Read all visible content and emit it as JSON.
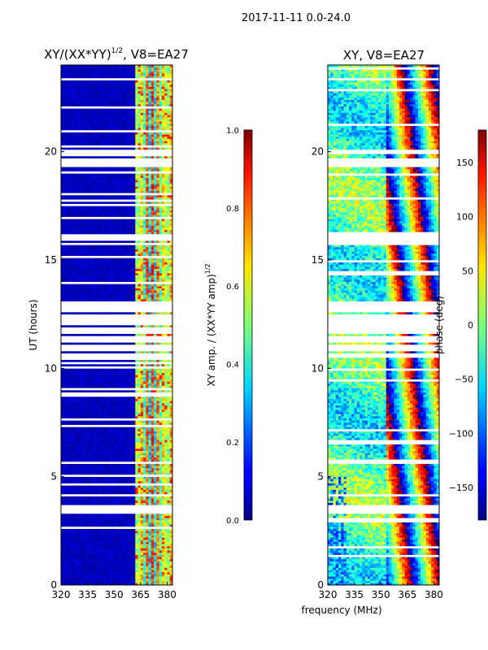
{
  "figure_title": "2017-11-11 0.0-24.0",
  "chart_data": [
    {
      "type": "heatmap",
      "title_main": "XY/(XX*YY)",
      "title_sup": "1/2",
      "title_tail": ", V8=EA27",
      "xlabel": "",
      "ylabel": "UT (hours)",
      "xlim": [
        320,
        383
      ],
      "ylim": [
        0,
        24
      ],
      "xticks": [
        320,
        335,
        350,
        365,
        380
      ],
      "yticks": [
        0,
        5,
        10,
        15,
        20
      ],
      "colorbar": {
        "label_main": "XY amp. / (XX*YY amp)",
        "label_sup": "1/2",
        "range": [
          0.0,
          1.0
        ],
        "ticks": [
          "0.0",
          "0.2",
          "0.4",
          "0.6",
          "0.8",
          "1.0"
        ],
        "colormap": "jet"
      },
      "features": {
        "low_band_mhz": [
          320,
          361
        ],
        "low_band_value": 0.05,
        "active_band_mhz": [
          361,
          381
        ],
        "active_band_value_range": [
          0.3,
          0.85
        ],
        "flagged_hours": [
          3.4,
          3.6,
          10.6,
          11.0,
          11.3,
          11.8,
          12.1,
          12.4,
          12.8,
          13.0,
          16.0,
          19.4,
          19.6,
          20.0
        ]
      }
    },
    {
      "type": "heatmap",
      "title_main": "XY, V8=EA27",
      "xlabel": "frequency (MHz)",
      "ylabel": "",
      "xlim": [
        320,
        383
      ],
      "ylim": [
        0,
        24
      ],
      "xticks": [
        320,
        335,
        350,
        365,
        380
      ],
      "yticks": [
        0,
        5,
        10,
        15,
        20
      ],
      "colorbar": {
        "label": "phase (deg)",
        "range": [
          -180,
          180
        ],
        "ticks": [
          "−150",
          "−100",
          "−50",
          "0",
          "50",
          "100",
          "150"
        ],
        "tick_values": [
          -150,
          -100,
          -50,
          0,
          50,
          100,
          150
        ],
        "colormap": "jet"
      },
      "features": {
        "phase_wrap_band_mhz": [
          352,
          383
        ],
        "background_phase_deg": [
          -40,
          60
        ],
        "flagged_hours": [
          3.4,
          3.6,
          10.6,
          11.0,
          11.3,
          11.8,
          12.1,
          12.4,
          12.8,
          13.0,
          16.0,
          19.4,
          19.6,
          20.0
        ]
      }
    }
  ]
}
